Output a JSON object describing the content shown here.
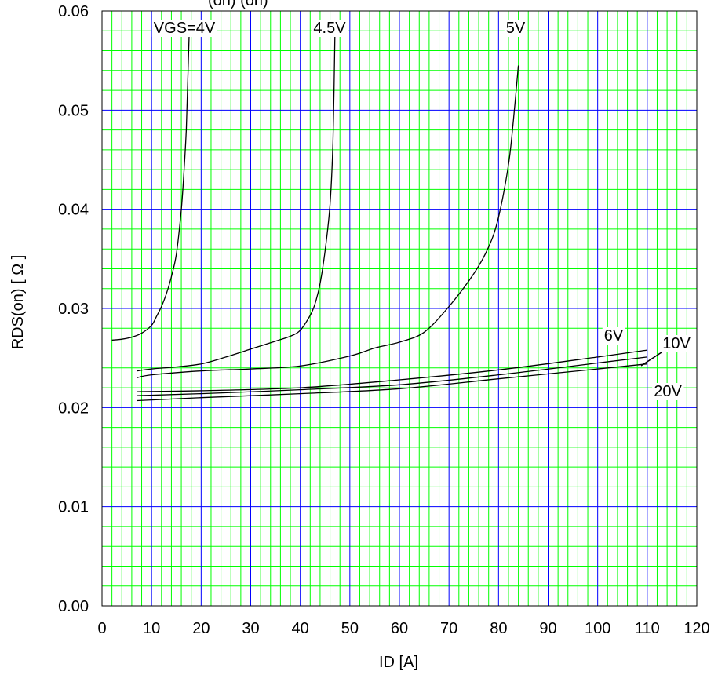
{
  "chart_data": {
    "type": "line",
    "title": "(on)  (on)",
    "xlabel": "ID [A]",
    "ylabel": "RDS(on) [  Ω ]",
    "xlim": [
      0,
      120
    ],
    "ylim": [
      0,
      0.06
    ],
    "x_ticks": [
      "0",
      "10",
      "20",
      "30",
      "40",
      "50",
      "60",
      "70",
      "80",
      "90",
      "100",
      "110",
      "120"
    ],
    "y_ticks": [
      "0.00",
      "0.01",
      "0.02",
      "0.03",
      "0.04",
      "0.05",
      "0.06"
    ],
    "grid": true,
    "minor_grid_color": "#00ff00",
    "major_grid_color": "#0000ff",
    "line_color": "#000000",
    "series": [
      {
        "name": "VGS=4V",
        "x": [
          2,
          4,
          6,
          8,
          10,
          11,
          12,
          13,
          14,
          15,
          16,
          16.5,
          17,
          17.3,
          17.6
        ],
        "y": [
          0.0268,
          0.0269,
          0.0271,
          0.0275,
          0.0283,
          0.0292,
          0.0302,
          0.0315,
          0.0332,
          0.0355,
          0.04,
          0.0435,
          0.048,
          0.053,
          0.058
        ]
      },
      {
        "name": "4.5V",
        "x": [
          7,
          10,
          15,
          20,
          25,
          30,
          35,
          38,
          40,
          42,
          43,
          44,
          45,
          46,
          46.6,
          47
        ],
        "y": [
          0.0237,
          0.0239,
          0.0241,
          0.0244,
          0.0251,
          0.0259,
          0.0267,
          0.0272,
          0.0278,
          0.0293,
          0.0305,
          0.0325,
          0.0358,
          0.0405,
          0.047,
          0.058
        ]
      },
      {
        "name": "5V",
        "x": [
          7,
          10,
          20,
          30,
          40,
          50,
          55,
          60,
          65,
          70,
          75,
          78,
          80,
          82,
          83,
          84
        ],
        "y": [
          0.023,
          0.0233,
          0.0237,
          0.0239,
          0.0242,
          0.0252,
          0.026,
          0.0266,
          0.0276,
          0.0302,
          0.0335,
          0.0362,
          0.0392,
          0.0445,
          0.049,
          0.0545
        ]
      },
      {
        "name": "6V",
        "x": [
          7,
          20,
          40,
          60,
          80,
          100,
          110
        ],
        "y": [
          0.0216,
          0.0217,
          0.022,
          0.0228,
          0.0238,
          0.0251,
          0.0258
        ]
      },
      {
        "name": "10V",
        "x": [
          7,
          20,
          40,
          60,
          80,
          100,
          110
        ],
        "y": [
          0.0212,
          0.0214,
          0.0218,
          0.0223,
          0.0233,
          0.0245,
          0.0251
        ]
      },
      {
        "name": "20V",
        "x": [
          7,
          20,
          40,
          60,
          80,
          100,
          110
        ],
        "y": [
          0.0207,
          0.021,
          0.0214,
          0.0219,
          0.0229,
          0.0239,
          0.0244
        ]
      }
    ]
  }
}
